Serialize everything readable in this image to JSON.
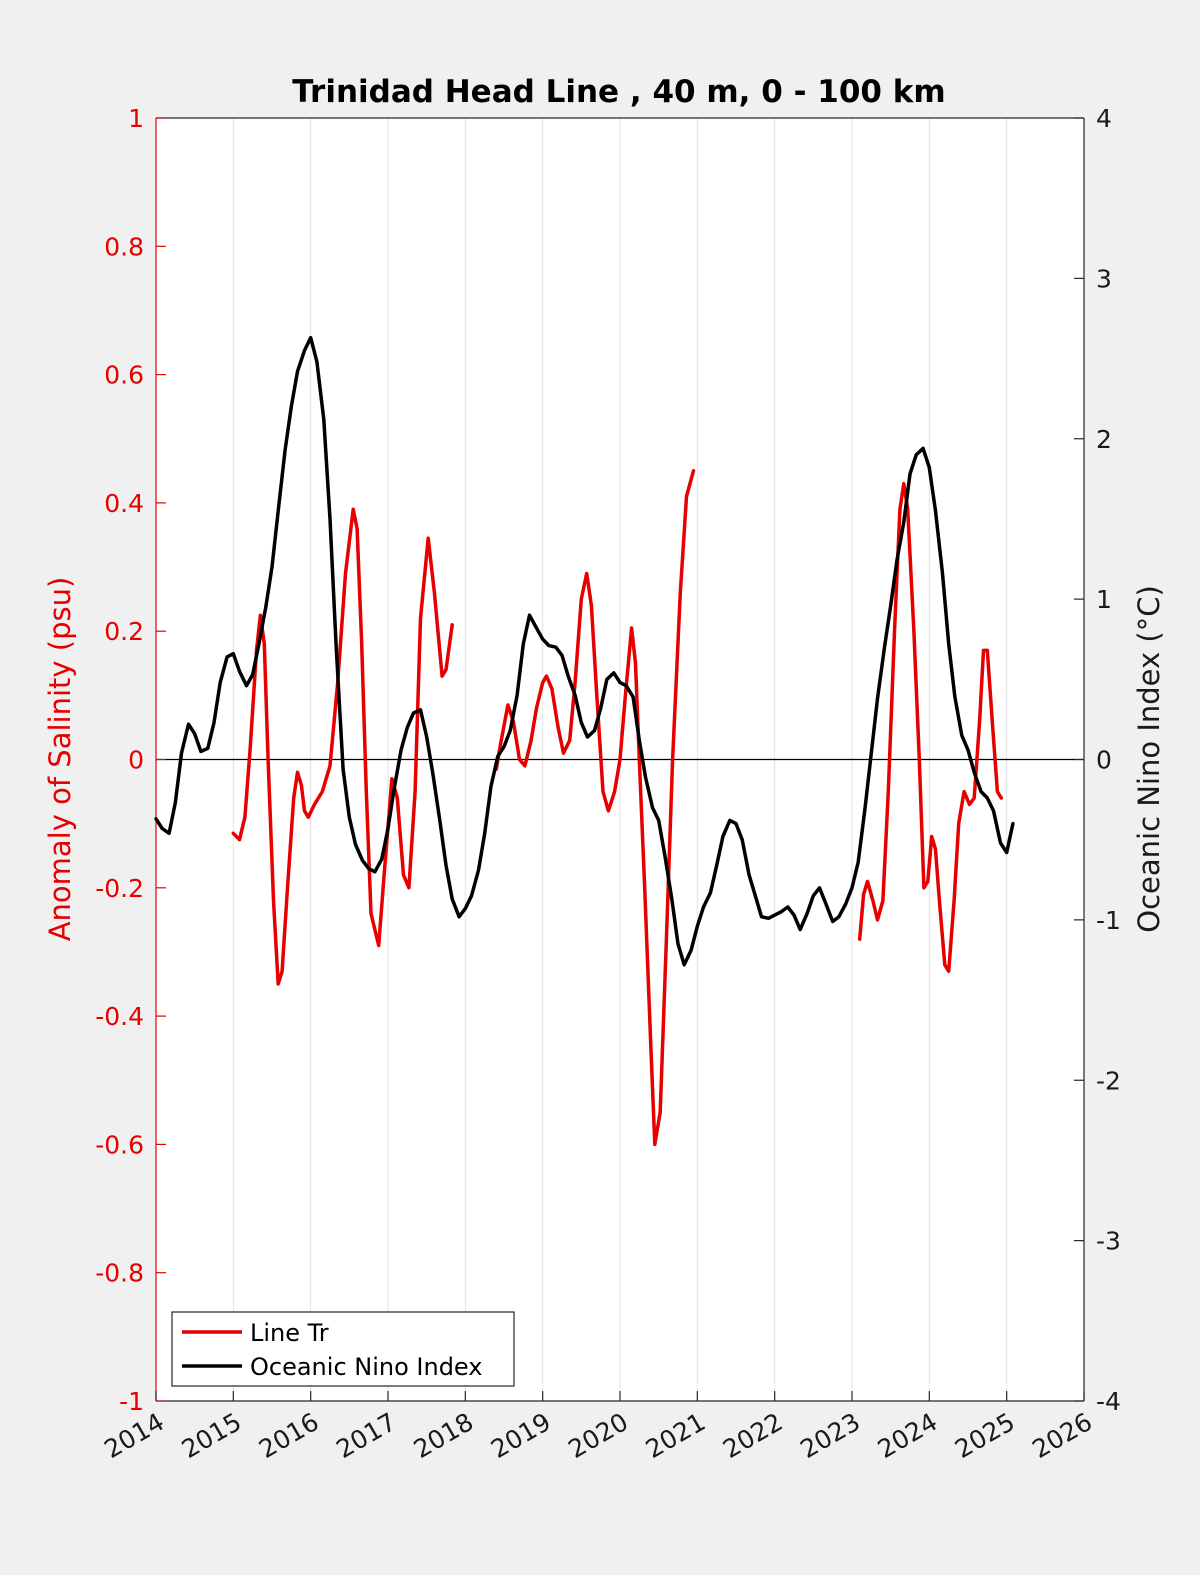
{
  "chart_data": {
    "type": "line",
    "title": "Trinidad Head Line , 40 m, 0 - 100 km",
    "ylabel_left": "Anomaly of Salinity (psu)",
    "ylabel_right": "Oceanic Nino Index (°C)",
    "xlim": [
      2014,
      2026
    ],
    "ylim_left": [
      -1,
      1
    ],
    "ylim_right": [
      -4,
      4
    ],
    "x_ticks": [
      "2014",
      "2015",
      "2016",
      "2017",
      "2018",
      "2019",
      "2020",
      "2021",
      "2022",
      "2023",
      "2024",
      "2025",
      "2026"
    ],
    "y_ticks_left": [
      "1",
      "0.8",
      "0.6",
      "0.4",
      "0.2",
      "0",
      "-0.2",
      "-0.4",
      "-0.6",
      "-0.8",
      "-1"
    ],
    "y_ticks_right": [
      "4",
      "3",
      "2",
      "1",
      "0",
      "-1",
      "-2",
      "-3",
      "-4"
    ],
    "grid": "vertical",
    "legend_position": "bottom-left",
    "colors": {
      "line_tr": "#e60000",
      "oni": "#000000",
      "axis_left": "#e60000"
    },
    "series": [
      {
        "name": "Line Tr",
        "axis": "left",
        "color": "#e60000",
        "segments": [
          [
            [
              2015.0,
              -0.115
            ],
            [
              2015.08,
              -0.125
            ],
            [
              2015.15,
              -0.09
            ],
            [
              2015.22,
              0.02
            ],
            [
              2015.3,
              0.17
            ],
            [
              2015.35,
              0.225
            ],
            [
              2015.4,
              0.18
            ],
            [
              2015.45,
              0.0
            ],
            [
              2015.52,
              -0.22
            ],
            [
              2015.58,
              -0.35
            ],
            [
              2015.63,
              -0.33
            ],
            [
              2015.7,
              -0.2
            ],
            [
              2015.78,
              -0.06
            ],
            [
              2015.83,
              -0.02
            ],
            [
              2015.88,
              -0.04
            ],
            [
              2015.92,
              -0.08
            ],
            [
              2015.97,
              -0.09
            ],
            [
              2016.05,
              -0.07
            ],
            [
              2016.15,
              -0.05
            ],
            [
              2016.25,
              -0.01
            ],
            [
              2016.35,
              0.12
            ],
            [
              2016.45,
              0.29
            ],
            [
              2016.55,
              0.39
            ],
            [
              2016.6,
              0.36
            ],
            [
              2016.66,
              0.18
            ],
            [
              2016.72,
              -0.05
            ],
            [
              2016.78,
              -0.24
            ],
            [
              2016.88,
              -0.29
            ],
            [
              2016.95,
              -0.18
            ],
            [
              2017.05,
              -0.03
            ],
            [
              2017.12,
              -0.06
            ],
            [
              2017.2,
              -0.18
            ],
            [
              2017.27,
              -0.2
            ],
            [
              2017.35,
              -0.05
            ],
            [
              2017.42,
              0.22
            ],
            [
              2017.52,
              0.345
            ],
            [
              2017.6,
              0.26
            ],
            [
              2017.7,
              0.13
            ],
            [
              2017.75,
              0.14
            ],
            [
              2017.83,
              0.21
            ]
          ],
          [
            [
              2018.4,
              -0.015
            ],
            [
              2018.45,
              0.02
            ],
            [
              2018.55,
              0.085
            ],
            [
              2018.62,
              0.06
            ],
            [
              2018.7,
              0.0
            ],
            [
              2018.77,
              -0.01
            ],
            [
              2018.85,
              0.03
            ],
            [
              2018.92,
              0.08
            ],
            [
              2019.0,
              0.12
            ],
            [
              2019.05,
              0.13
            ],
            [
              2019.12,
              0.11
            ],
            [
              2019.2,
              0.05
            ],
            [
              2019.27,
              0.01
            ],
            [
              2019.35,
              0.03
            ],
            [
              2019.42,
              0.12
            ],
            [
              2019.5,
              0.25
            ],
            [
              2019.57,
              0.29
            ],
            [
              2019.63,
              0.24
            ],
            [
              2019.7,
              0.1
            ],
            [
              2019.78,
              -0.05
            ],
            [
              2019.85,
              -0.08
            ],
            [
              2019.93,
              -0.05
            ],
            [
              2020.0,
              0.0
            ],
            [
              2020.07,
              0.1
            ],
            [
              2020.15,
              0.205
            ],
            [
              2020.2,
              0.15
            ],
            [
              2020.25,
              0.0
            ],
            [
              2020.32,
              -0.2
            ],
            [
              2020.4,
              -0.45
            ],
            [
              2020.45,
              -0.6
            ],
            [
              2020.52,
              -0.55
            ],
            [
              2020.6,
              -0.28
            ],
            [
              2020.68,
              0.0
            ],
            [
              2020.78,
              0.26
            ],
            [
              2020.86,
              0.41
            ],
            [
              2020.95,
              0.45
            ]
          ],
          [
            [
              2023.1,
              -0.28
            ],
            [
              2023.15,
              -0.21
            ],
            [
              2023.2,
              -0.19
            ],
            [
              2023.27,
              -0.22
            ],
            [
              2023.33,
              -0.25
            ],
            [
              2023.4,
              -0.22
            ],
            [
              2023.47,
              -0.05
            ],
            [
              2023.55,
              0.2
            ],
            [
              2023.62,
              0.39
            ],
            [
              2023.67,
              0.43
            ],
            [
              2023.72,
              0.39
            ],
            [
              2023.8,
              0.2
            ],
            [
              2023.87,
              0.0
            ],
            [
              2023.93,
              -0.2
            ],
            [
              2023.98,
              -0.19
            ],
            [
              2024.03,
              -0.12
            ],
            [
              2024.08,
              -0.14
            ],
            [
              2024.13,
              -0.22
            ],
            [
              2024.2,
              -0.32
            ],
            [
              2024.25,
              -0.33
            ],
            [
              2024.32,
              -0.22
            ],
            [
              2024.38,
              -0.1
            ],
            [
              2024.45,
              -0.05
            ],
            [
              2024.52,
              -0.07
            ],
            [
              2024.58,
              -0.06
            ],
            [
              2024.65,
              0.06
            ],
            [
              2024.7,
              0.17
            ],
            [
              2024.75,
              0.17
            ],
            [
              2024.82,
              0.05
            ],
            [
              2024.88,
              -0.05
            ],
            [
              2024.93,
              -0.06
            ]
          ]
        ]
      },
      {
        "name": "Oceanic Nino Index",
        "axis": "right",
        "color": "#000000",
        "points": [
          [
            2014.0,
            -0.37
          ],
          [
            2014.08,
            -0.43
          ],
          [
            2014.17,
            -0.46
          ],
          [
            2014.25,
            -0.27
          ],
          [
            2014.33,
            0.04
          ],
          [
            2014.42,
            0.22
          ],
          [
            2014.5,
            0.16
          ],
          [
            2014.58,
            0.05
          ],
          [
            2014.67,
            0.07
          ],
          [
            2014.75,
            0.23
          ],
          [
            2014.83,
            0.48
          ],
          [
            2014.92,
            0.64
          ],
          [
            2015.0,
            0.66
          ],
          [
            2015.08,
            0.55
          ],
          [
            2015.17,
            0.46
          ],
          [
            2015.25,
            0.53
          ],
          [
            2015.33,
            0.72
          ],
          [
            2015.42,
            0.95
          ],
          [
            2015.5,
            1.2
          ],
          [
            2015.58,
            1.55
          ],
          [
            2015.67,
            1.93
          ],
          [
            2015.75,
            2.2
          ],
          [
            2015.83,
            2.42
          ],
          [
            2015.92,
            2.55
          ],
          [
            2016.0,
            2.63
          ],
          [
            2016.08,
            2.48
          ],
          [
            2016.17,
            2.12
          ],
          [
            2016.25,
            1.5
          ],
          [
            2016.33,
            0.7
          ],
          [
            2016.42,
            -0.06
          ],
          [
            2016.5,
            -0.36
          ],
          [
            2016.58,
            -0.53
          ],
          [
            2016.67,
            -0.63
          ],
          [
            2016.75,
            -0.68
          ],
          [
            2016.83,
            -0.7
          ],
          [
            2016.92,
            -0.62
          ],
          [
            2017.0,
            -0.43
          ],
          [
            2017.08,
            -0.18
          ],
          [
            2017.17,
            0.06
          ],
          [
            2017.25,
            0.2
          ],
          [
            2017.33,
            0.29
          ],
          [
            2017.42,
            0.31
          ],
          [
            2017.5,
            0.14
          ],
          [
            2017.58,
            -0.09
          ],
          [
            2017.67,
            -0.38
          ],
          [
            2017.75,
            -0.66
          ],
          [
            2017.83,
            -0.87
          ],
          [
            2017.92,
            -0.98
          ],
          [
            2018.0,
            -0.93
          ],
          [
            2018.08,
            -0.85
          ],
          [
            2018.17,
            -0.69
          ],
          [
            2018.25,
            -0.46
          ],
          [
            2018.33,
            -0.17
          ],
          [
            2018.42,
            0.02
          ],
          [
            2018.5,
            0.08
          ],
          [
            2018.58,
            0.18
          ],
          [
            2018.67,
            0.4
          ],
          [
            2018.75,
            0.72
          ],
          [
            2018.83,
            0.9
          ],
          [
            2018.92,
            0.82
          ],
          [
            2019.0,
            0.75
          ],
          [
            2019.08,
            0.71
          ],
          [
            2019.17,
            0.7
          ],
          [
            2019.25,
            0.65
          ],
          [
            2019.33,
            0.52
          ],
          [
            2019.42,
            0.4
          ],
          [
            2019.5,
            0.23
          ],
          [
            2019.58,
            0.14
          ],
          [
            2019.67,
            0.18
          ],
          [
            2019.75,
            0.32
          ],
          [
            2019.83,
            0.5
          ],
          [
            2019.92,
            0.54
          ],
          [
            2020.0,
            0.48
          ],
          [
            2020.08,
            0.46
          ],
          [
            2020.17,
            0.39
          ],
          [
            2020.25,
            0.12
          ],
          [
            2020.33,
            -0.11
          ],
          [
            2020.42,
            -0.3
          ],
          [
            2020.5,
            -0.38
          ],
          [
            2020.58,
            -0.6
          ],
          [
            2020.67,
            -0.87
          ],
          [
            2020.75,
            -1.15
          ],
          [
            2020.83,
            -1.28
          ],
          [
            2020.92,
            -1.19
          ],
          [
            2021.0,
            -1.04
          ],
          [
            2021.08,
            -0.92
          ],
          [
            2021.17,
            -0.83
          ],
          [
            2021.25,
            -0.66
          ],
          [
            2021.33,
            -0.48
          ],
          [
            2021.42,
            -0.38
          ],
          [
            2021.5,
            -0.4
          ],
          [
            2021.58,
            -0.5
          ],
          [
            2021.67,
            -0.72
          ],
          [
            2021.75,
            -0.85
          ],
          [
            2021.83,
            -0.98
          ],
          [
            2021.92,
            -0.99
          ],
          [
            2022.0,
            -0.97
          ],
          [
            2022.08,
            -0.95
          ],
          [
            2022.17,
            -0.92
          ],
          [
            2022.25,
            -0.97
          ],
          [
            2022.33,
            -1.06
          ],
          [
            2022.42,
            -0.96
          ],
          [
            2022.5,
            -0.85
          ],
          [
            2022.58,
            -0.8
          ],
          [
            2022.67,
            -0.91
          ],
          [
            2022.75,
            -1.01
          ],
          [
            2022.83,
            -0.98
          ],
          [
            2022.92,
            -0.9
          ],
          [
            2023.0,
            -0.8
          ],
          [
            2023.08,
            -0.64
          ],
          [
            2023.17,
            -0.3
          ],
          [
            2023.25,
            0.04
          ],
          [
            2023.33,
            0.38
          ],
          [
            2023.42,
            0.7
          ],
          [
            2023.5,
            0.96
          ],
          [
            2023.58,
            1.24
          ],
          [
            2023.67,
            1.48
          ],
          [
            2023.75,
            1.78
          ],
          [
            2023.83,
            1.9
          ],
          [
            2023.92,
            1.94
          ],
          [
            2024.0,
            1.82
          ],
          [
            2024.08,
            1.55
          ],
          [
            2024.17,
            1.16
          ],
          [
            2024.25,
            0.72
          ],
          [
            2024.33,
            0.39
          ],
          [
            2024.42,
            0.15
          ],
          [
            2024.5,
            0.06
          ],
          [
            2024.58,
            -0.08
          ],
          [
            2024.67,
            -0.2
          ],
          [
            2024.75,
            -0.24
          ],
          [
            2024.83,
            -0.32
          ],
          [
            2024.92,
            -0.52
          ],
          [
            2025.0,
            -0.58
          ],
          [
            2025.08,
            -0.4
          ]
        ]
      }
    ]
  }
}
